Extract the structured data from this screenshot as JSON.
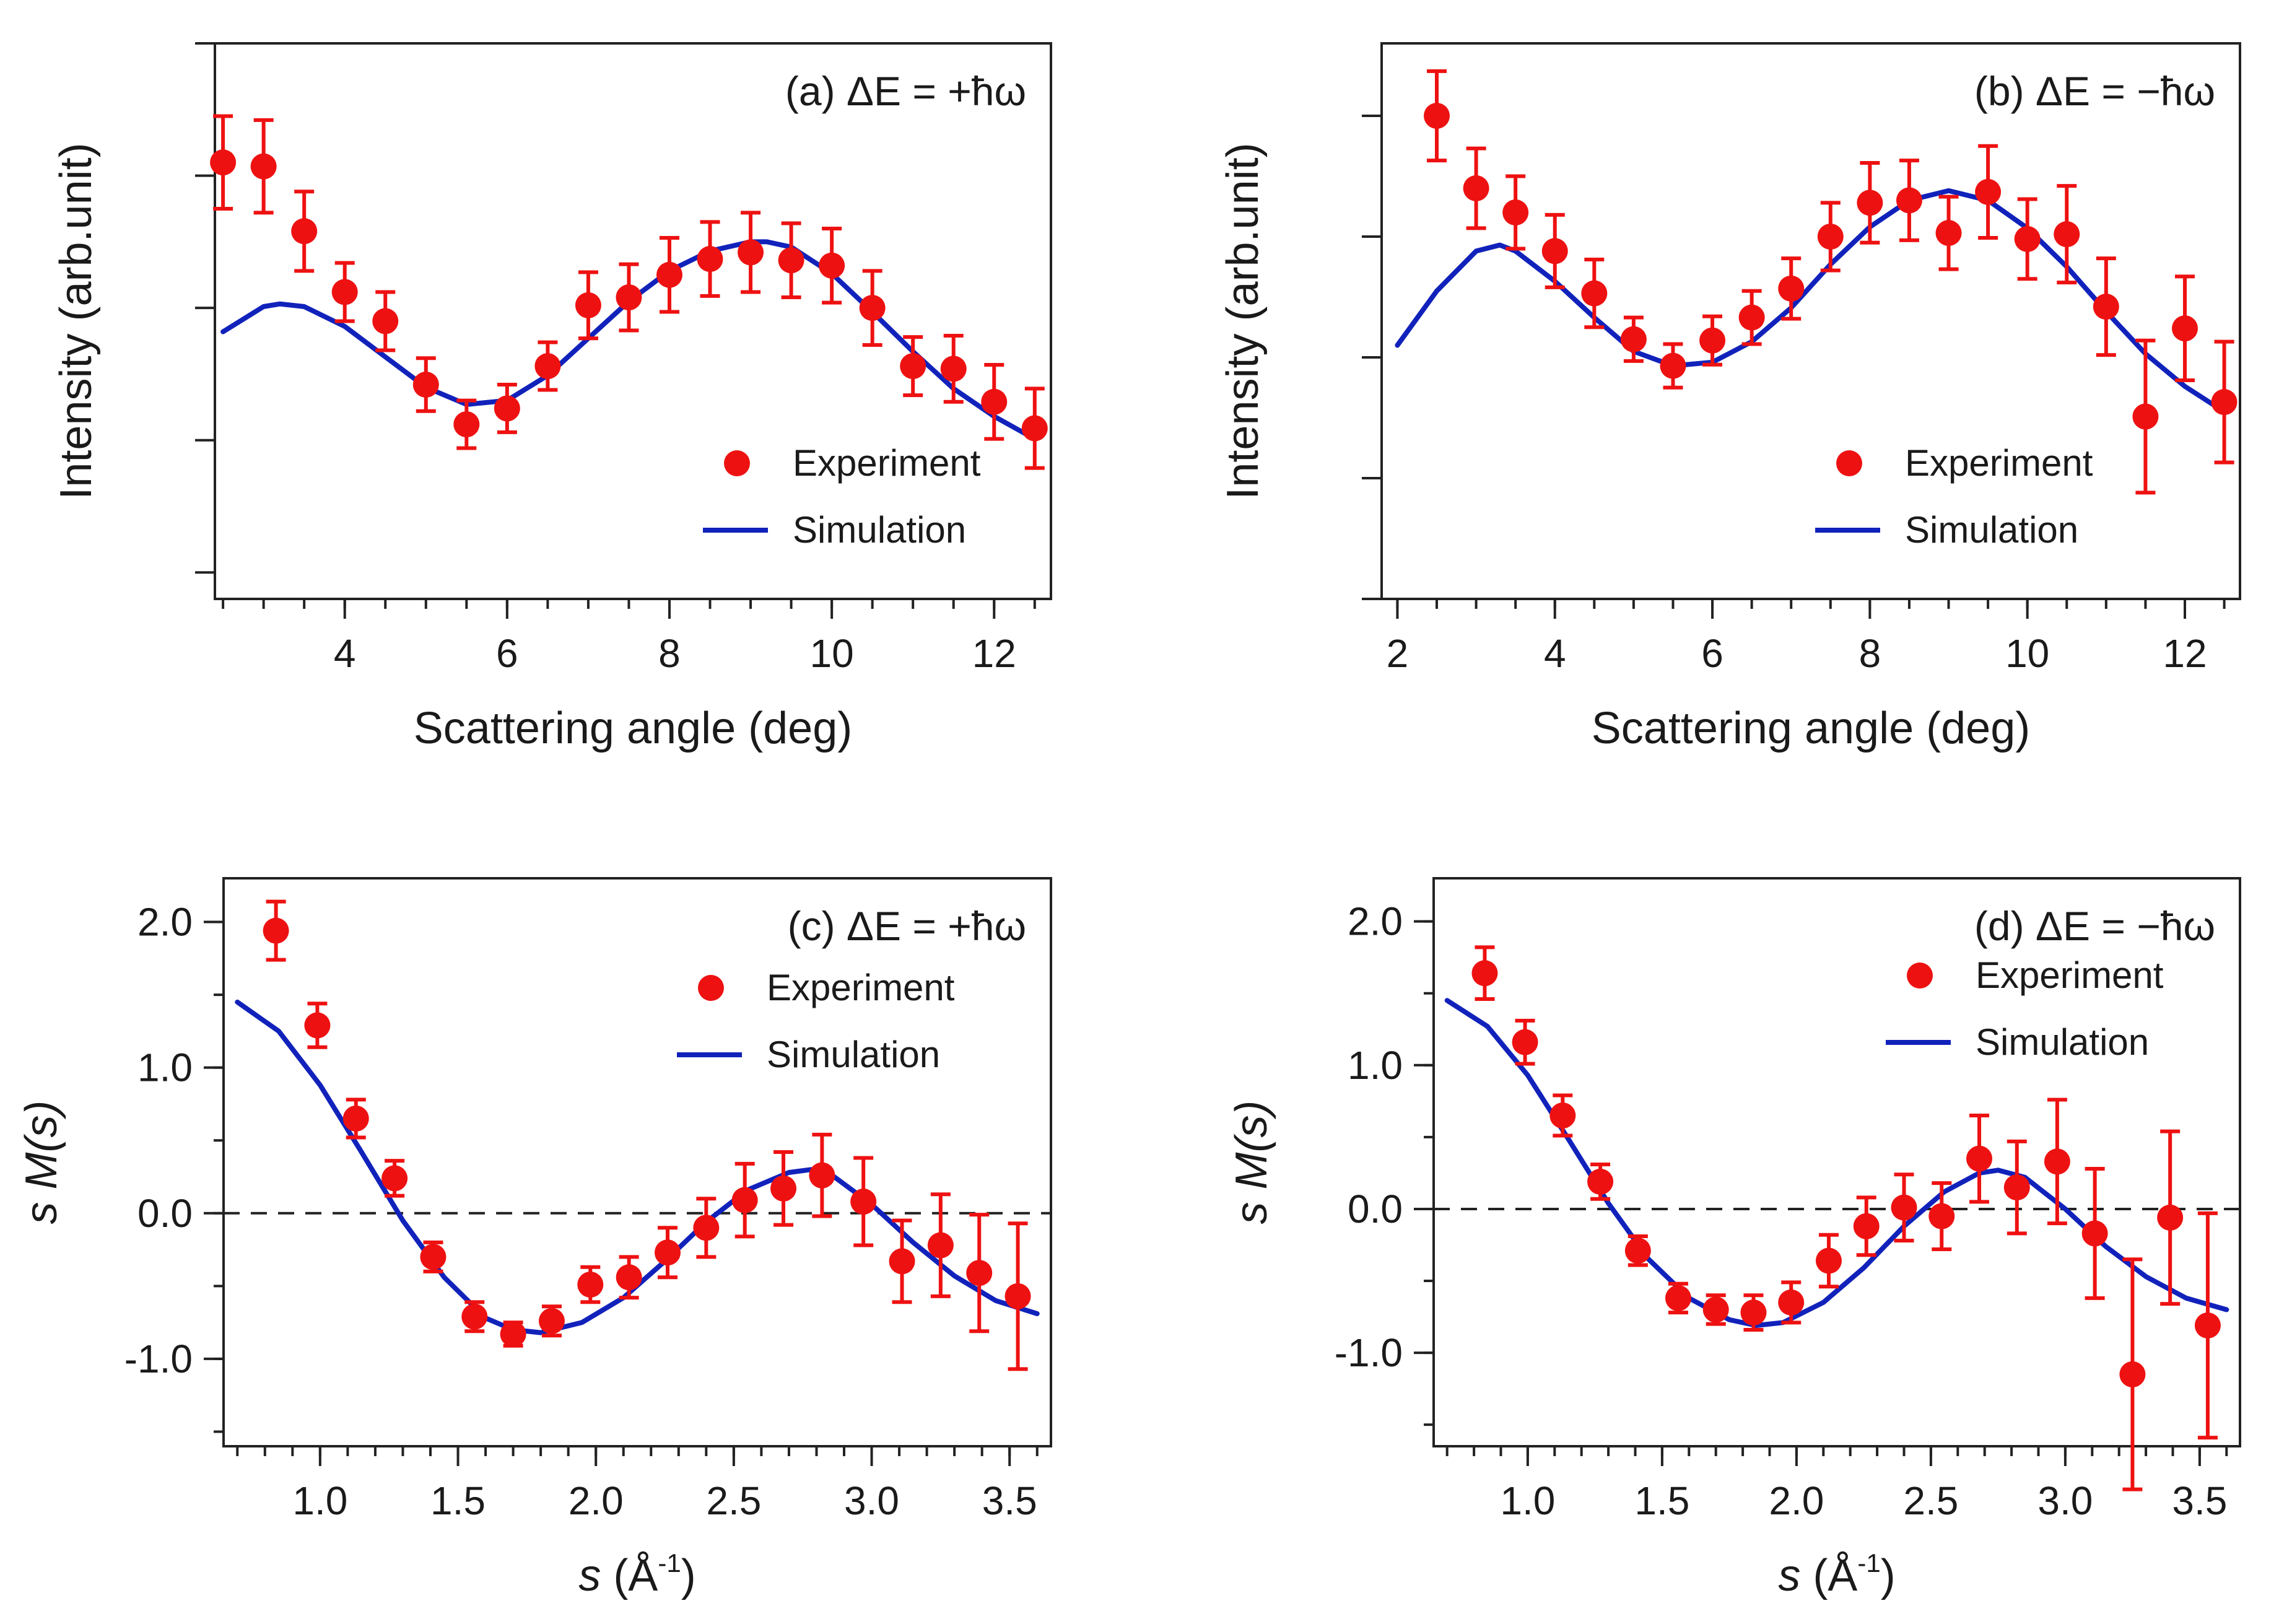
{
  "colors": {
    "experiment": "#ee1111",
    "simulation": "#1122bb",
    "axis": "#222222",
    "zero_line": "#222222"
  },
  "chart_data": [
    {
      "id": "a",
      "type": "scatter",
      "panel_label": "(a) ΔE = +ħω",
      "xlabel": "Scattering angle (deg)",
      "ylabel": "Intensity (arb.unit)",
      "xlim": [
        2.4,
        12.7
      ],
      "ylim": [
        0.0,
        4.2
      ],
      "xticks": [
        4,
        6,
        8,
        10,
        12
      ],
      "xtick_labels": [
        "4",
        "6",
        "8",
        "10",
        "12"
      ],
      "x_minor_step": 0.5,
      "yticks": [
        0.2,
        1.2,
        2.2,
        3.2,
        4.2
      ],
      "ytick_labels": [],
      "legend": {
        "experiment": "Experiment",
        "simulation": "Simulation",
        "position": "bottom-right"
      },
      "series": [
        {
          "name": "Experiment",
          "kind": "points",
          "x": [
            2.5,
            3.0,
            3.5,
            4.0,
            4.5,
            5.0,
            5.5,
            6.0,
            6.5,
            7.0,
            7.5,
            8.0,
            8.5,
            9.0,
            9.5,
            10.0,
            10.5,
            11.0,
            11.5,
            12.0,
            12.5
          ],
          "y": [
            3.3,
            3.27,
            2.78,
            2.32,
            2.1,
            1.62,
            1.32,
            1.44,
            1.76,
            2.22,
            2.28,
            2.45,
            2.57,
            2.62,
            2.56,
            2.52,
            2.2,
            1.76,
            1.74,
            1.49,
            1.29
          ],
          "err": [
            0.35,
            0.35,
            0.3,
            0.22,
            0.22,
            0.2,
            0.18,
            0.18,
            0.18,
            0.25,
            0.25,
            0.28,
            0.28,
            0.3,
            0.28,
            0.28,
            0.28,
            0.22,
            0.25,
            0.28,
            0.3
          ]
        },
        {
          "name": "Simulation",
          "kind": "line",
          "x": [
            2.5,
            3.0,
            3.2,
            3.5,
            4.0,
            4.5,
            5.0,
            5.5,
            6.0,
            6.5,
            7.0,
            7.5,
            8.0,
            8.5,
            9.0,
            9.2,
            9.5,
            10.0,
            10.5,
            11.0,
            11.5,
            12.0,
            12.5
          ],
          "y": [
            2.02,
            2.21,
            2.23,
            2.21,
            2.06,
            1.83,
            1.6,
            1.47,
            1.5,
            1.69,
            1.97,
            2.25,
            2.48,
            2.63,
            2.7,
            2.7,
            2.66,
            2.46,
            2.17,
            1.87,
            1.59,
            1.38,
            1.21
          ]
        }
      ]
    },
    {
      "id": "b",
      "type": "scatter",
      "panel_label": "(b) ΔE = −ħω",
      "xlabel": "Scattering angle (deg)",
      "ylabel": "Intensity (arb.unit)",
      "xlim": [
        1.8,
        12.7
      ],
      "ylim": [
        0.0,
        4.6
      ],
      "xticks": [
        2,
        4,
        6,
        8,
        10,
        12
      ],
      "xtick_labels": [
        "2",
        "4",
        "6",
        "8",
        "10",
        "12"
      ],
      "x_minor_step": 0.5,
      "yticks": [
        0.0,
        1.0,
        2.0,
        3.0,
        4.0
      ],
      "ytick_labels": [],
      "legend": {
        "experiment": "Experiment",
        "simulation": "Simulation",
        "position": "bottom-right"
      },
      "series": [
        {
          "name": "Experiment",
          "kind": "points",
          "x": [
            2.5,
            3.0,
            3.5,
            4.0,
            4.5,
            5.0,
            5.5,
            6.0,
            6.5,
            7.0,
            7.5,
            8.0,
            8.5,
            9.0,
            9.5,
            10.0,
            10.5,
            11.0,
            11.5,
            12.0,
            12.5
          ],
          "y": [
            4.0,
            3.4,
            3.2,
            2.88,
            2.53,
            2.15,
            1.93,
            2.14,
            2.33,
            2.57,
            3.0,
            3.28,
            3.3,
            3.03,
            3.37,
            2.98,
            3.02,
            2.42,
            1.51,
            2.24,
            1.63
          ],
          "err": [
            0.37,
            0.33,
            0.3,
            0.3,
            0.28,
            0.18,
            0.18,
            0.2,
            0.22,
            0.25,
            0.28,
            0.33,
            0.33,
            0.3,
            0.38,
            0.33,
            0.4,
            0.4,
            0.63,
            0.43,
            0.5
          ]
        },
        {
          "name": "Simulation",
          "kind": "line",
          "x": [
            2.0,
            2.5,
            3.0,
            3.3,
            3.5,
            4.0,
            4.5,
            5.0,
            5.5,
            6.0,
            6.5,
            7.0,
            7.5,
            8.0,
            8.5,
            9.0,
            9.5,
            10.0,
            10.5,
            11.0,
            11.5,
            12.0,
            12.5
          ],
          "y": [
            2.1,
            2.55,
            2.88,
            2.93,
            2.88,
            2.63,
            2.33,
            2.05,
            1.93,
            1.96,
            2.13,
            2.41,
            2.77,
            3.08,
            3.3,
            3.38,
            3.3,
            3.07,
            2.75,
            2.38,
            2.03,
            1.76,
            1.55
          ]
        }
      ]
    },
    {
      "id": "c",
      "type": "scatter",
      "panel_label": "(c) ΔE = +ħω",
      "xlabel": "s (Å⁻¹)",
      "xlabel_var": "s",
      "xlabel_unit": "(Å",
      "xlabel_exp": "-1",
      "xlabel_close": ")",
      "ylabel": "s M(s)",
      "xlim": [
        0.65,
        3.65
      ],
      "ylim": [
        -1.6,
        2.3
      ],
      "xticks": [
        1.0,
        1.5,
        2.0,
        2.5,
        3.0,
        3.5
      ],
      "xtick_labels": [
        "1.0",
        "1.5",
        "2.0",
        "2.5",
        "3.0",
        "3.5"
      ],
      "x_minor_step": 0.1,
      "yticks": [
        -1.0,
        0.0,
        1.0,
        2.0
      ],
      "ytick_labels": [
        "-1.0",
        "0.0",
        "1.0",
        "2.0"
      ],
      "y_minor_step": 0.5,
      "zero_line": true,
      "legend": {
        "experiment": "Experiment",
        "simulation": "Simulation",
        "position": "top-right"
      },
      "series": [
        {
          "name": "Experiment",
          "kind": "points",
          "x": [
            0.84,
            0.99,
            1.13,
            1.27,
            1.41,
            1.56,
            1.7,
            1.84,
            1.98,
            2.12,
            2.26,
            2.4,
            2.54,
            2.68,
            2.82,
            2.97,
            3.11,
            3.25,
            3.39,
            3.53
          ],
          "y": [
            1.94,
            1.29,
            0.65,
            0.24,
            -0.3,
            -0.71,
            -0.83,
            -0.74,
            -0.49,
            -0.44,
            -0.27,
            -0.1,
            0.09,
            0.17,
            0.26,
            0.08,
            -0.33,
            -0.22,
            -0.41,
            -0.57
          ],
          "err": [
            0.2,
            0.15,
            0.13,
            0.12,
            0.1,
            0.1,
            0.08,
            0.1,
            0.12,
            0.14,
            0.17,
            0.2,
            0.25,
            0.25,
            0.28,
            0.3,
            0.28,
            0.35,
            0.4,
            0.5
          ]
        },
        {
          "name": "Simulation",
          "kind": "line",
          "x": [
            0.7,
            0.85,
            1.0,
            1.15,
            1.3,
            1.45,
            1.6,
            1.7,
            1.8,
            1.95,
            2.1,
            2.25,
            2.4,
            2.55,
            2.7,
            2.78,
            2.85,
            3.0,
            3.15,
            3.3,
            3.45,
            3.6
          ],
          "y": [
            1.45,
            1.25,
            0.88,
            0.42,
            -0.05,
            -0.44,
            -0.72,
            -0.8,
            -0.82,
            -0.75,
            -0.58,
            -0.33,
            -0.06,
            0.16,
            0.28,
            0.3,
            0.27,
            0.06,
            -0.2,
            -0.43,
            -0.6,
            -0.69
          ]
        }
      ]
    },
    {
      "id": "d",
      "type": "scatter",
      "panel_label": "(d) ΔE = −ħω",
      "xlabel": "s (Å⁻¹)",
      "xlabel_var": "s",
      "xlabel_unit": "(Å",
      "xlabel_exp": "-1",
      "xlabel_close": ")",
      "ylabel": "s M(s)",
      "xlim": [
        0.65,
        3.65
      ],
      "ylim": [
        -1.65,
        2.3
      ],
      "xticks": [
        1.0,
        1.5,
        2.0,
        2.5,
        3.0,
        3.5
      ],
      "xtick_labels": [
        "1.0",
        "1.5",
        "2.0",
        "2.5",
        "3.0",
        "3.5"
      ],
      "x_minor_step": 0.1,
      "yticks": [
        -1.0,
        0.0,
        1.0,
        2.0
      ],
      "ytick_labels": [
        "-1.0",
        "0.0",
        "1.0",
        "2.0"
      ],
      "y_minor_step": 0.5,
      "zero_line": true,
      "legend": {
        "experiment": "Experiment",
        "simulation": "Simulation",
        "position": "top-right"
      },
      "series": [
        {
          "name": "Experiment",
          "kind": "points",
          "x": [
            0.84,
            0.99,
            1.13,
            1.27,
            1.41,
            1.56,
            1.7,
            1.84,
            1.98,
            2.12,
            2.26,
            2.4,
            2.54,
            2.68,
            2.82,
            2.97,
            3.11,
            3.25,
            3.39,
            3.53
          ],
          "y": [
            1.64,
            1.16,
            0.65,
            0.19,
            -0.29,
            -0.62,
            -0.7,
            -0.72,
            -0.65,
            -0.36,
            -0.12,
            0.01,
            -0.05,
            0.35,
            0.15,
            0.33,
            -0.17,
            -1.15,
            -0.06,
            -0.81
          ],
          "err": [
            0.18,
            0.15,
            0.14,
            0.12,
            0.1,
            0.1,
            0.1,
            0.12,
            0.14,
            0.18,
            0.2,
            0.23,
            0.23,
            0.3,
            0.32,
            0.43,
            0.45,
            0.8,
            0.6,
            0.78
          ]
        },
        {
          "name": "Simulation",
          "kind": "line",
          "x": [
            0.7,
            0.85,
            1.0,
            1.15,
            1.3,
            1.45,
            1.6,
            1.75,
            1.85,
            1.95,
            2.1,
            2.25,
            2.4,
            2.55,
            2.68,
            2.75,
            2.85,
            3.0,
            3.15,
            3.3,
            3.45,
            3.6
          ],
          "y": [
            1.45,
            1.27,
            0.93,
            0.49,
            0.04,
            -0.35,
            -0.62,
            -0.77,
            -0.81,
            -0.79,
            -0.65,
            -0.41,
            -0.12,
            0.12,
            0.25,
            0.27,
            0.22,
            0.0,
            -0.26,
            -0.47,
            -0.62,
            -0.7
          ]
        }
      ]
    }
  ]
}
